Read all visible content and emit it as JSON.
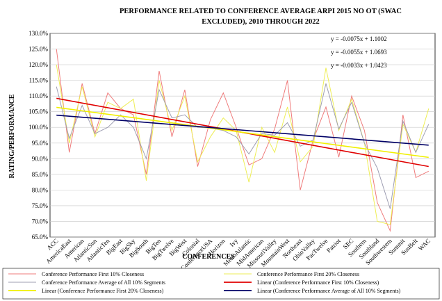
{
  "chart_data": {
    "type": "line",
    "title_lines": [
      "PERFORMANCE RELATED TO CONFERENCE AVERAGE ARPI 2015 NO OT (SWAC",
      "EXCLUDED), 2010 THROUGH  2022"
    ],
    "xlabel": "CONFERENCES",
    "ylabel": "RATING/PERFORMANCE",
    "ylim": [
      65,
      130
    ],
    "yticks": [
      "65.0%",
      "70.0%",
      "75.0%",
      "80.0%",
      "85.0%",
      "90.0%",
      "95.0%",
      "100.0%",
      "105.0%",
      "110.0%",
      "115.0%",
      "120.0%",
      "125.0%",
      "130.0%"
    ],
    "grid": true,
    "categories": [
      "ACC",
      "AmericaEast",
      "American",
      "AtlanticSun",
      "AtlanticTen",
      "BigEast",
      "BigSky",
      "BigSouth",
      "BigTen",
      "BigTwelve",
      "BigWest",
      "Colonial",
      "ConferenceUSA",
      "Horizon",
      "Ivy",
      "MetroAtlantic",
      "MidAmerican",
      "MissouriValley",
      "MountainWest",
      "Northeast",
      "OhioValley",
      "PacTwelve",
      "Patriot",
      "SEC",
      "Southern",
      "Southland",
      "Southwestern",
      "Summit",
      "SunBelt",
      "WAC"
    ],
    "series": [
      {
        "name": "Conference Performance First 10% Closeness",
        "color": "#ef7b7b",
        "values": [
          125,
          92,
          114,
          98,
          111,
          106,
          104,
          85,
          118,
          97,
          112,
          87.5,
          102.5,
          111,
          100,
          88,
          90,
          99.5,
          115,
          80,
          96,
          106.5,
          90.5,
          110,
          99,
          76,
          67,
          104,
          84,
          86
        ]
      },
      {
        "name": "Conference Performance First 20% Closeness",
        "color": "#eeee55",
        "values": [
          120,
          95,
          113,
          97,
          108,
          106,
          109,
          83,
          115,
          99,
          110,
          89,
          97,
          103,
          99,
          82.5,
          100,
          92,
          106.5,
          89,
          94,
          119,
          99,
          109,
          95,
          70,
          69,
          101,
          92,
          106
        ]
      },
      {
        "name": "Conference Performance Average of All 10% Segments",
        "color": "#9e9eb2",
        "values": [
          113,
          96.5,
          107,
          98,
          100,
          104,
          100,
          90,
          112,
          103,
          104,
          100,
          99.8,
          99,
          97,
          91.5,
          98,
          97.5,
          101.5,
          94,
          96,
          114,
          99.5,
          108,
          95,
          87,
          74,
          102,
          92,
          101
        ]
      },
      {
        "name": "Linear (Conference Performance First 10% Closeness)",
        "color": "#e00000",
        "trend": true,
        "equation": "y = -0.0075x + 1.1002",
        "slope": -0.75,
        "intercept": 110.02
      },
      {
        "name": "Linear (Conference Performance First 20% Closeness)",
        "color": "#f0f000",
        "trend": true,
        "equation": "y = -0.0055x + 1.0693",
        "slope": -0.55,
        "intercept": 106.93
      },
      {
        "name": "Linear (Conference Performance Average of All 10% Segments)",
        "color": "#000066",
        "trend": true,
        "equation": "y = -0.0033x + 1.0423",
        "slope": -0.33,
        "intercept": 104.23
      }
    ]
  }
}
